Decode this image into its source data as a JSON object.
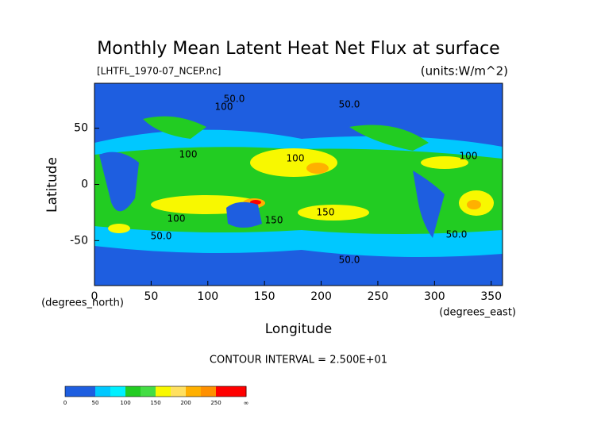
{
  "chart_data": {
    "type": "contour",
    "title": "Monthly Mean Latent Heat Net Flux at surface",
    "subtitle": "[LHTFL_1970-07_NCEP.nc]",
    "units": "(units:W/m^2)",
    "ylabel": "Latitude",
    "ylabel_units": "(degrees_north)",
    "xlabel": "Longitude",
    "xlabel_units": "(degrees_east)",
    "annotation": "CONTOUR INTERVAL = 2.500E+01",
    "xlim": [
      0,
      360
    ],
    "xticks": [
      0,
      50,
      100,
      150,
      200,
      250,
      300,
      350
    ],
    "ylim": [
      -90,
      90
    ],
    "yticks": [
      -50,
      0,
      50
    ],
    "contour_labels": [
      "100",
      "50.0",
      "100",
      "150",
      "100",
      "50.0",
      "100",
      "50.0",
      "100",
      "150",
      "50.0",
      "50.0"
    ],
    "colorbar": {
      "ticks": [
        0,
        50,
        100,
        150,
        200,
        250
      ],
      "end_label": "∞",
      "colors": [
        "#1e5ee0",
        "#1e5ee0",
        "#00c8ff",
        "#00f0ff",
        "#22cc22",
        "#44dd44",
        "#f8f800",
        "#ffe060",
        "#ffb000",
        "#ff9000",
        "#ff0000",
        "#ff0000"
      ]
    }
  }
}
